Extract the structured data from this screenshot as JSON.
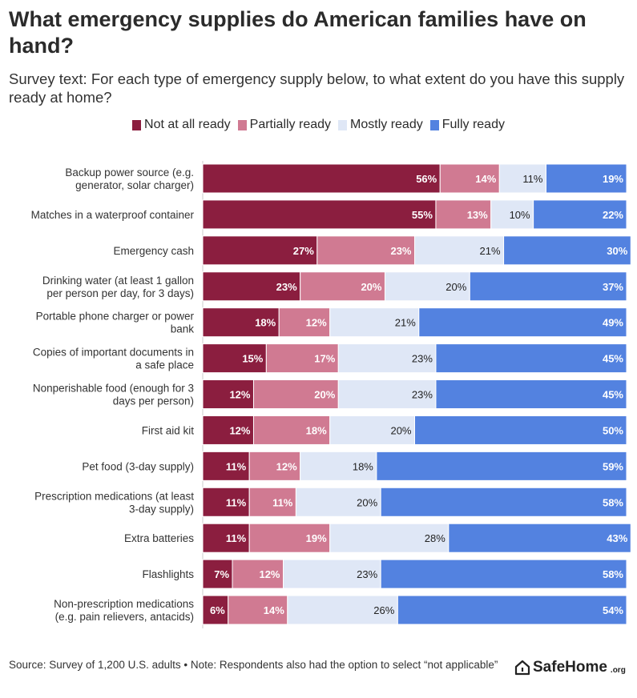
{
  "title": "What emergency supplies do American families have on hand?",
  "subtitle": "Survey text: For each type of emergency supply below, to what extent do you have this supply ready at home?",
  "legend": [
    {
      "label": "Not at all ready",
      "color": "#8b1e3f"
    },
    {
      "label": "Partially ready",
      "color": "#d07a92"
    },
    {
      "label": "Mostly ready",
      "color": "#dfe7f6"
    },
    {
      "label": "Fully ready",
      "color": "#5382e0"
    }
  ],
  "chart_data": {
    "type": "bar",
    "orientation": "horizontal",
    "stacked": true,
    "title": "What emergency supplies do American families have on hand?",
    "categories": [
      [
        "Backup power source (e.g.",
        "generator, solar charger)"
      ],
      [
        "Matches in a waterproof container"
      ],
      [
        "Emergency cash"
      ],
      [
        "Drinking water (at least 1 gallon",
        "per person per day, for 3 days)"
      ],
      [
        "Portable phone charger or power",
        "bank"
      ],
      [
        "Copies of important documents in",
        "a safe place"
      ],
      [
        "Nonperishable food (enough for 3",
        "days per person)"
      ],
      [
        "First aid kit"
      ],
      [
        "Pet food (3-day supply)"
      ],
      [
        "Prescription medications (at least",
        "3-day supply)"
      ],
      [
        "Extra batteries"
      ],
      [
        "Flashlights"
      ],
      [
        "Non-prescription medications",
        "(e.g. pain relievers, antacids)"
      ]
    ],
    "series": [
      {
        "name": "Not at all ready",
        "color": "#8b1e3f",
        "label_color": "#ffffff",
        "values": [
          56,
          55,
          27,
          23,
          18,
          15,
          12,
          12,
          11,
          11,
          11,
          7,
          6
        ]
      },
      {
        "name": "Partially ready",
        "color": "#d07a92",
        "label_color": "#ffffff",
        "values": [
          14,
          13,
          23,
          20,
          12,
          17,
          20,
          18,
          12,
          11,
          19,
          12,
          14
        ]
      },
      {
        "name": "Mostly ready",
        "color": "#dfe7f6",
        "label_color": "#222222",
        "values": [
          11,
          10,
          21,
          20,
          21,
          23,
          23,
          20,
          18,
          20,
          28,
          23,
          26
        ]
      },
      {
        "name": "Fully ready",
        "color": "#5382e0",
        "label_color": "#ffffff",
        "values": [
          19,
          22,
          30,
          37,
          49,
          45,
          45,
          50,
          59,
          58,
          43,
          58,
          54
        ]
      }
    ],
    "value_suffix": "%",
    "xlim": [
      0,
      100
    ]
  },
  "footer": {
    "source": "Source: Survey of 1,200 U.S. adults • Note: Respondents also had the option to select “not applicable”",
    "brand_name": "SafeHome",
    "brand_tld": ".org"
  }
}
